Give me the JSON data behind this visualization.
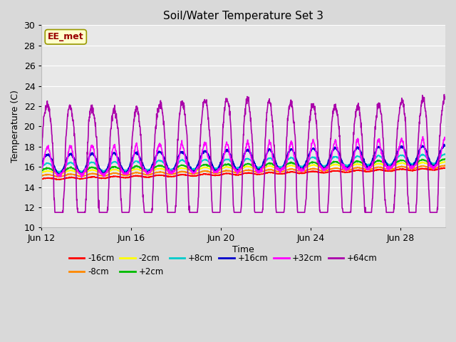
{
  "title": "Soil/Water Temperature Set 3",
  "xlabel": "Time",
  "ylabel": "Temperature (C)",
  "ylim": [
    10,
    30
  ],
  "x_ticks_labels": [
    "Jun 12",
    "Jun 16",
    "Jun 20",
    "Jun 24",
    "Jun 28"
  ],
  "x_ticks_pos": [
    0,
    4,
    8,
    12,
    16
  ],
  "annotation_text": "EE_met",
  "annotation_color": "#990000",
  "annotation_bg": "#ffffcc",
  "annotation_border": "#999900",
  "fig_facecolor": "#d9d9d9",
  "axes_facecolor": "#e8e8e8",
  "series_colors": {
    "-16cm": "#ff0000",
    "-8cm": "#ff8800",
    "-2cm": "#ffff00",
    "+2cm": "#00bb00",
    "+8cm": "#00cccc",
    "+16cm": "#0000cc",
    "+32cm": "#ff00ff",
    "+64cm": "#aa00aa"
  },
  "series_linewidths": {
    "-16cm": 1.2,
    "-8cm": 1.2,
    "-2cm": 1.2,
    "+2cm": 1.2,
    "+8cm": 1.2,
    "+16cm": 1.5,
    "+32cm": 1.2,
    "+64cm": 1.2
  },
  "days": 18,
  "num_points": 1800
}
